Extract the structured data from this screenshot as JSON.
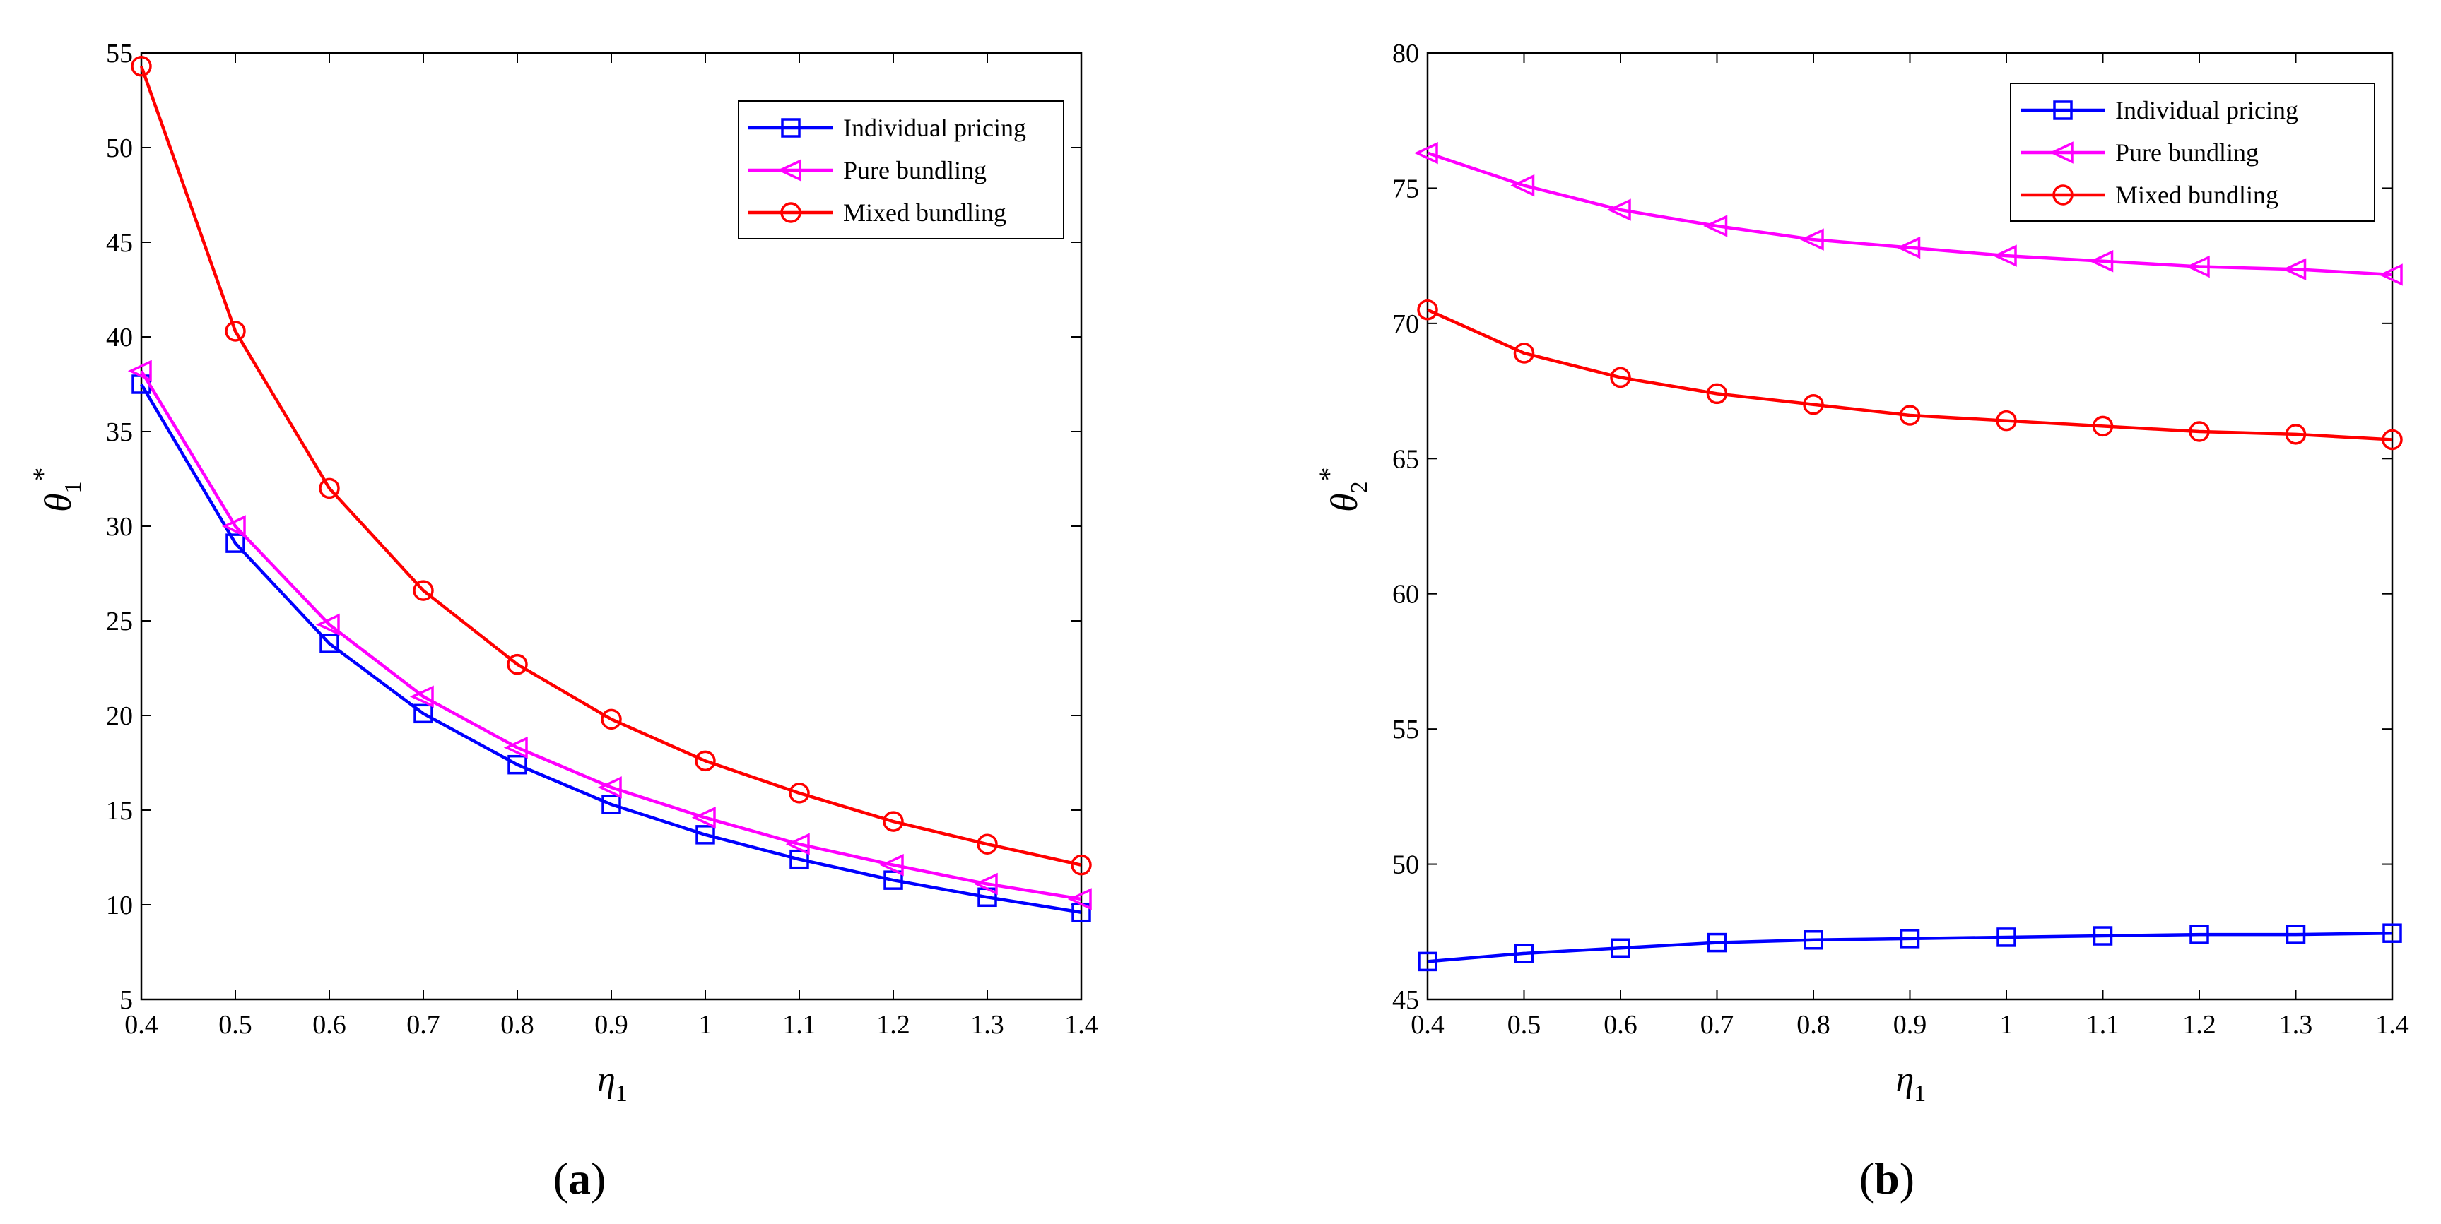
{
  "chart_data": [
    {
      "type": "line",
      "panel_label": "a",
      "x": [
        0.4,
        0.5,
        0.6,
        0.7,
        0.8,
        0.9,
        1,
        1.1,
        1.2,
        1.3,
        1.4
      ],
      "x_tick_labels": [
        "0.4",
        "0.5",
        "0.6",
        "0.7",
        "0.8",
        "0.9",
        "1",
        "1.1",
        "1.2",
        "1.3",
        "1.4"
      ],
      "xlim": [
        0.4,
        1.4
      ],
      "ylim": [
        5,
        55
      ],
      "y_ticks": [
        5,
        10,
        15,
        20,
        25,
        30,
        35,
        40,
        45,
        50,
        55
      ],
      "xlabel": {
        "symbol": "η",
        "sub": "1"
      },
      "ylabel": {
        "symbol": "θ",
        "sub": "1",
        "sup": "*"
      },
      "legend_position": "top-right",
      "series": [
        {
          "name": "Individual pricing",
          "color": "#0000ff",
          "marker": "square",
          "values": [
            37.5,
            29.1,
            23.8,
            20.1,
            17.4,
            15.3,
            13.7,
            12.4,
            11.3,
            10.4,
            9.6
          ]
        },
        {
          "name": "Pure bundling",
          "color": "#ff00ff",
          "marker": "triangle-left",
          "values": [
            38.2,
            30.0,
            24.8,
            21.0,
            18.3,
            16.2,
            14.6,
            13.2,
            12.1,
            11.1,
            10.3
          ]
        },
        {
          "name": "Mixed bundling",
          "color": "#ff0000",
          "marker": "circle",
          "values": [
            54.3,
            40.3,
            32.0,
            26.6,
            22.7,
            19.8,
            17.6,
            15.9,
            14.4,
            13.2,
            12.1
          ]
        }
      ]
    },
    {
      "type": "line",
      "panel_label": "b",
      "x": [
        0.4,
        0.5,
        0.6,
        0.7,
        0.8,
        0.9,
        1,
        1.1,
        1.2,
        1.3,
        1.4
      ],
      "x_tick_labels": [
        "0.4",
        "0.5",
        "0.6",
        "0.7",
        "0.8",
        "0.9",
        "1",
        "1.1",
        "1.2",
        "1.3",
        "1.4"
      ],
      "xlim": [
        0.4,
        1.4
      ],
      "ylim": [
        45,
        80
      ],
      "y_ticks": [
        45,
        50,
        55,
        60,
        65,
        70,
        75,
        80
      ],
      "xlabel": {
        "symbol": "η",
        "sub": "1"
      },
      "ylabel": {
        "symbol": "θ",
        "sub": "2",
        "sup": "*"
      },
      "legend_position": "top-right",
      "series": [
        {
          "name": "Individual pricing",
          "color": "#0000ff",
          "marker": "square",
          "values": [
            46.4,
            46.7,
            46.9,
            47.1,
            47.2,
            47.25,
            47.3,
            47.35,
            47.4,
            47.4,
            47.45
          ]
        },
        {
          "name": "Pure bundling",
          "color": "#ff00ff",
          "marker": "triangle-left",
          "values": [
            76.3,
            75.1,
            74.2,
            73.6,
            73.1,
            72.8,
            72.5,
            72.3,
            72.1,
            72.0,
            71.8
          ]
        },
        {
          "name": "Mixed bundling",
          "color": "#ff0000",
          "marker": "circle",
          "values": [
            70.5,
            68.9,
            68.0,
            67.4,
            67.0,
            66.6,
            66.4,
            66.2,
            66.0,
            65.9,
            65.7
          ]
        }
      ]
    }
  ]
}
